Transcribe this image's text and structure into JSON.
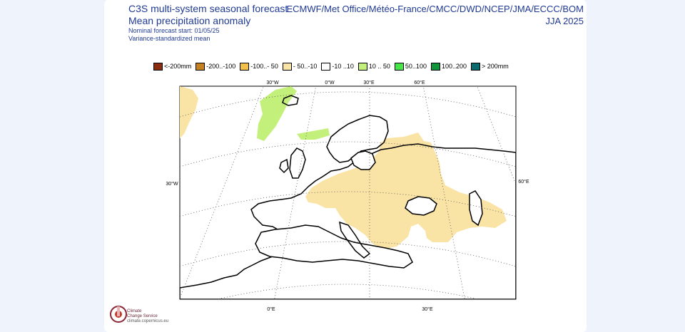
{
  "title": {
    "line1": "C3S multi-system seasonal forecast",
    "line2": "Mean precipitation anomaly",
    "line3": "Nominal forecast start: 01/05/25",
    "line4": "Variance-standardized mean"
  },
  "systems": "ECMWF/Met Office/Météo-France/CMCC/DWD/NCEP/JMA/ECCC/BOM",
  "period": "JJA 2025",
  "legend": [
    {
      "label": "<-200mm",
      "color": "#8b2d0f"
    },
    {
      "label": "-200..-100",
      "color": "#c68121"
    },
    {
      "label": "-100..- 50",
      "color": "#f3c14b"
    },
    {
      "label": "- 50..-10",
      "color": "#f9e3a5"
    },
    {
      "label": "-10 ..10",
      "color": "#ffffff"
    },
    {
      "label": "10 .. 50",
      "color": "#c3f07a"
    },
    {
      "label": "50..100",
      "color": "#47e548"
    },
    {
      "label": "100..200",
      "color": "#12943a"
    },
    {
      "label": "> 200mm",
      "color": "#0b6b6e"
    }
  ],
  "map": {
    "lon_labels_top": [
      "30°W",
      "0°W",
      "30°E",
      "60°E"
    ],
    "lon_labels_bottom": [
      "0°E",
      "30°E"
    ],
    "lat_label_left": "30°W",
    "lat_label_right": "60°E",
    "colors": {
      "dry_light": "#f9e3a5",
      "wet_light": "#c3f07a",
      "coast": "#000000",
      "border": "#999999"
    }
  },
  "logo": {
    "name_line1": "Climate",
    "name_line2": "Change Service",
    "url": "climate.copernicus.eu",
    "icon": "copernicus-c3s-logo-icon"
  }
}
